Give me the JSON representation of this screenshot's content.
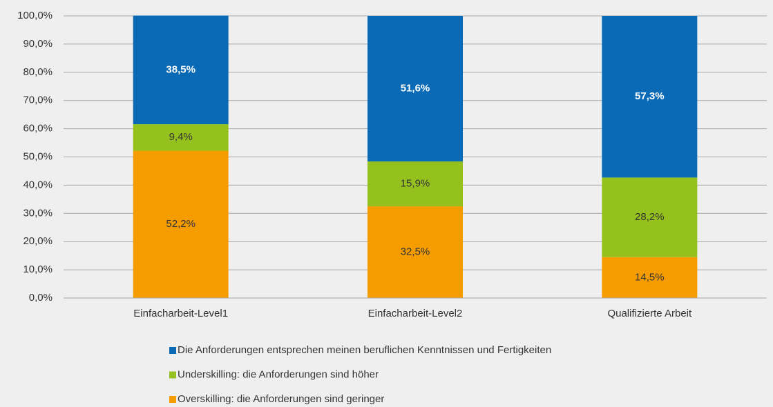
{
  "chart_data": {
    "type": "stacked_bar",
    "categories": [
      "Einfacharbeit-Level1",
      "Einfacharbeit-Level2",
      "Qualifizierte Arbeit"
    ],
    "series": [
      {
        "name": "Die Anforderungen entsprechen meinen beruflichen Kenntnissen und Fertigkeiten",
        "color": "#0a6ab6",
        "values": [
          38.5,
          51.6,
          57.3
        ],
        "value_labels": [
          "38,5%",
          "51,6%",
          "57,3%"
        ]
      },
      {
        "name": "Underskilling: die Anforderungen sind höher",
        "color": "#95c11f",
        "values": [
          9.4,
          15.9,
          28.2
        ],
        "value_labels": [
          "9,4%",
          "15,9%",
          "28,2%"
        ]
      },
      {
        "name": "Overskilling: die Anforderungen sind geringer",
        "color": "#f59c00",
        "values": [
          52.2,
          32.5,
          14.5
        ],
        "value_labels": [
          "52,2%",
          "32,5%",
          "14,5%"
        ]
      }
    ],
    "ylim": [
      0,
      100
    ],
    "yticks": [
      {
        "value": 0,
        "label": "0,0%"
      },
      {
        "value": 10,
        "label": "10,0%"
      },
      {
        "value": 20,
        "label": "20,0%"
      },
      {
        "value": 30,
        "label": "30,0%"
      },
      {
        "value": 40,
        "label": "40,0%"
      },
      {
        "value": 50,
        "label": "50,0%"
      },
      {
        "value": 60,
        "label": "60,0%"
      },
      {
        "value": 70,
        "label": "70,0%"
      },
      {
        "value": 80,
        "label": "80,0%"
      },
      {
        "value": 90,
        "label": "90,0%"
      },
      {
        "value": 100,
        "label": "100,0%"
      }
    ],
    "grid": true
  }
}
